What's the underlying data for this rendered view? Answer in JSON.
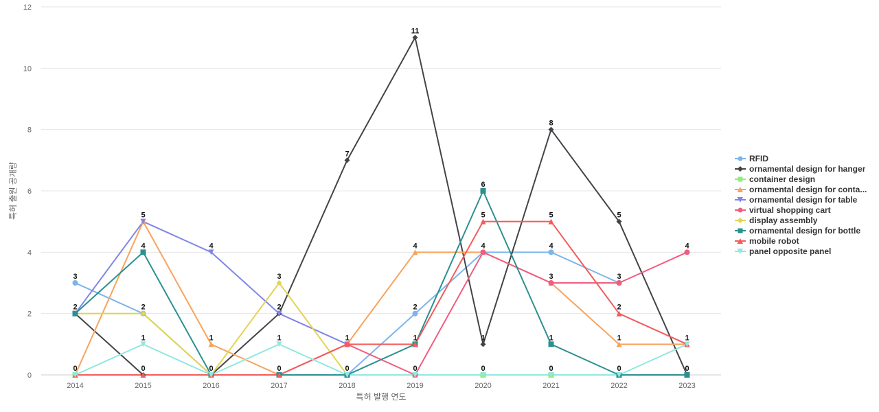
{
  "chart_data": {
    "type": "line",
    "xlabel": "특허 발행 연도",
    "ylabel": "특허 출원 공개량",
    "x": [
      "2014",
      "2015",
      "2016",
      "2017",
      "2018",
      "2019",
      "2020",
      "2021",
      "2022",
      "2023"
    ],
    "ylim": [
      0,
      12
    ],
    "yticks": [
      0,
      2,
      4,
      6,
      8,
      10,
      12
    ],
    "grid": true,
    "legend_position": "right",
    "series": [
      {
        "name": "RFID",
        "legend_label": "RFID",
        "color": "#7cb5ec",
        "marker": "circle",
        "values": [
          3,
          2,
          0,
          0,
          0,
          2,
          4,
          4,
          3,
          null
        ]
      },
      {
        "name": "ornamental design for hanger",
        "legend_label": "ornamental design for hanger",
        "color": "#434348",
        "marker": "diamond",
        "values": [
          2,
          0,
          0,
          2,
          7,
          11,
          1,
          8,
          5,
          0
        ]
      },
      {
        "name": "container design",
        "legend_label": "container design",
        "color": "#90ed7d",
        "marker": "square",
        "values": [
          0,
          null,
          null,
          null,
          null,
          0,
          0,
          0,
          null,
          null
        ]
      },
      {
        "name": "ornamental design for container",
        "legend_label": "ornamental design for conta...",
        "color": "#f7a35c",
        "marker": "triangle",
        "values": [
          0,
          5,
          1,
          0,
          1,
          4,
          4,
          3,
          1,
          1
        ]
      },
      {
        "name": "ornamental design for table",
        "legend_label": "ornamental design for table",
        "color": "#8085e9",
        "marker": "triangle-down",
        "values": [
          2,
          5,
          4,
          2,
          1,
          null,
          null,
          null,
          null,
          null
        ]
      },
      {
        "name": "virtual shopping cart",
        "legend_label": "virtual shopping cart",
        "color": "#f15c80",
        "marker": "circle",
        "values": [
          null,
          null,
          null,
          0,
          1,
          0,
          4,
          3,
          3,
          4
        ]
      },
      {
        "name": "display assembly",
        "legend_label": "display assembly",
        "color": "#e4d354",
        "marker": "diamond",
        "values": [
          2,
          2,
          0,
          3,
          0,
          null,
          null,
          null,
          null,
          null
        ]
      },
      {
        "name": "ornamental design for bottle",
        "legend_label": "ornamental design for bottle",
        "color": "#2b908f",
        "marker": "square",
        "values": [
          2,
          4,
          0,
          0,
          0,
          1,
          6,
          1,
          0,
          0
        ]
      },
      {
        "name": "mobile robot",
        "legend_label": "mobile robot",
        "color": "#f45b5b",
        "marker": "triangle",
        "values": [
          0,
          0,
          0,
          0,
          1,
          1,
          5,
          5,
          2,
          1
        ]
      },
      {
        "name": "panel opposite panel",
        "legend_label": "panel opposite panel",
        "color": "#91e8e1",
        "marker": "triangle-down",
        "values": [
          0,
          1,
          0,
          1,
          0,
          0,
          0,
          0,
          0,
          1
        ]
      }
    ],
    "data_labels": [
      {
        "x": "2014",
        "y": 3,
        "text": "3"
      },
      {
        "x": "2014",
        "y": 2,
        "text": "2"
      },
      {
        "x": "2014",
        "y": 0,
        "text": "0"
      },
      {
        "x": "2015",
        "y": 5,
        "text": "5"
      },
      {
        "x": "2015",
        "y": 4,
        "text": "4"
      },
      {
        "x": "2015",
        "y": 2,
        "text": "2"
      },
      {
        "x": "2015",
        "y": 1,
        "text": "1"
      },
      {
        "x": "2015",
        "y": 0,
        "text": "0"
      },
      {
        "x": "2016",
        "y": 4,
        "text": "4"
      },
      {
        "x": "2016",
        "y": 1,
        "text": "1"
      },
      {
        "x": "2016",
        "y": 0,
        "text": "0"
      },
      {
        "x": "2017",
        "y": 3,
        "text": "3"
      },
      {
        "x": "2017",
        "y": 2,
        "text": "2"
      },
      {
        "x": "2017",
        "y": 1,
        "text": "1"
      },
      {
        "x": "2017",
        "y": 0,
        "text": "0"
      },
      {
        "x": "2018",
        "y": 7,
        "text": "7"
      },
      {
        "x": "2018",
        "y": 1,
        "text": "1"
      },
      {
        "x": "2018",
        "y": 0,
        "text": "0"
      },
      {
        "x": "2019",
        "y": 11,
        "text": "11"
      },
      {
        "x": "2019",
        "y": 4,
        "text": "4"
      },
      {
        "x": "2019",
        "y": 2,
        "text": "2"
      },
      {
        "x": "2019",
        "y": 1,
        "text": "1"
      },
      {
        "x": "2019",
        "y": 0,
        "text": "0"
      },
      {
        "x": "2020",
        "y": 6,
        "text": "6"
      },
      {
        "x": "2020",
        "y": 5,
        "text": "5"
      },
      {
        "x": "2020",
        "y": 4,
        "text": "4"
      },
      {
        "x": "2020",
        "y": 1,
        "text": "1"
      },
      {
        "x": "2020",
        "y": 0,
        "text": "0"
      },
      {
        "x": "2021",
        "y": 8,
        "text": "8"
      },
      {
        "x": "2021",
        "y": 5,
        "text": "5"
      },
      {
        "x": "2021",
        "y": 4,
        "text": "4"
      },
      {
        "x": "2021",
        "y": 3,
        "text": "3"
      },
      {
        "x": "2021",
        "y": 1,
        "text": "1"
      },
      {
        "x": "2021",
        "y": 0,
        "text": "0"
      },
      {
        "x": "2022",
        "y": 5,
        "text": "5"
      },
      {
        "x": "2022",
        "y": 3,
        "text": "3"
      },
      {
        "x": "2022",
        "y": 2,
        "text": "2"
      },
      {
        "x": "2022",
        "y": 1,
        "text": "1"
      },
      {
        "x": "2022",
        "y": 0,
        "text": "0"
      },
      {
        "x": "2023",
        "y": 4,
        "text": "4"
      },
      {
        "x": "2023",
        "y": 1,
        "text": "1"
      },
      {
        "x": "2023",
        "y": 0,
        "text": "0"
      }
    ]
  }
}
